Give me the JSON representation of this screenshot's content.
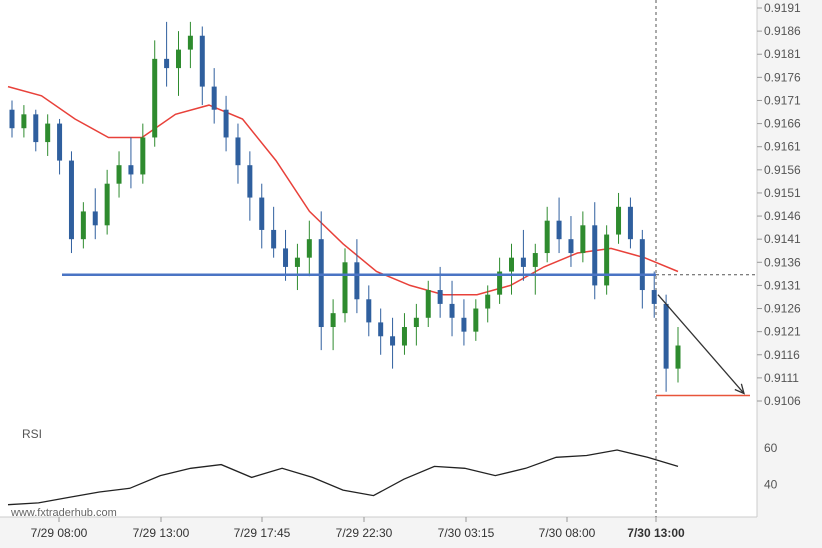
{
  "watermark": "www.fxtraderhub.com",
  "rsi_label": "RSI",
  "colors": {
    "bull": "#2e8b2e",
    "bear": "#2f5f9e",
    "ma": "#e8413a",
    "level": "#4a74c4",
    "target": "#e8553a",
    "arrow": "#333333",
    "rsi": "#222222"
  },
  "chart_data": {
    "type": "candlestick",
    "y_ticks": [
      "0.9191",
      "0.9186",
      "0.9181",
      "0.9176",
      "0.9171",
      "0.9166",
      "0.9161",
      "0.9156",
      "0.9151",
      "0.9146",
      "0.9141",
      "0.9136",
      "0.9131",
      "0.9126",
      "0.9121",
      "0.9116",
      "0.9111",
      "0.9106"
    ],
    "ylim": [
      0.9106,
      0.9191
    ],
    "x_ticks": [
      "7/29 08:00",
      "7/29 13:00",
      "7/29 17:45",
      "7/29 22:30",
      "7/30 03:15",
      "7/30 08:00",
      "7/30 13:00"
    ],
    "highlighted_x_tick": "7/30 13:00",
    "support_level": 0.91333,
    "target_level": 0.91072,
    "rsi_ticks": [
      60,
      40
    ],
    "rsi_ylim": [
      25,
      70
    ],
    "candles": [
      [
        0.9169,
        0.9171,
        0.9163,
        0.9165
      ],
      [
        0.9165,
        0.917,
        0.9163,
        0.9168
      ],
      [
        0.9168,
        0.9169,
        0.916,
        0.9162
      ],
      [
        0.9162,
        0.9168,
        0.9159,
        0.9166
      ],
      [
        0.9166,
        0.9167,
        0.9155,
        0.9158
      ],
      [
        0.9158,
        0.916,
        0.9138,
        0.9141
      ],
      [
        0.9141,
        0.9149,
        0.9139,
        0.9147
      ],
      [
        0.9147,
        0.9152,
        0.9141,
        0.9144
      ],
      [
        0.9144,
        0.9156,
        0.9142,
        0.9153
      ],
      [
        0.9153,
        0.916,
        0.915,
        0.9157
      ],
      [
        0.9157,
        0.9163,
        0.9152,
        0.9155
      ],
      [
        0.9155,
        0.9166,
        0.9153,
        0.9163
      ],
      [
        0.9163,
        0.9184,
        0.9161,
        0.918
      ],
      [
        0.918,
        0.9188,
        0.9174,
        0.9178
      ],
      [
        0.9178,
        0.9186,
        0.9172,
        0.9182
      ],
      [
        0.9182,
        0.9188,
        0.9178,
        0.9185
      ],
      [
        0.9185,
        0.9187,
        0.917,
        0.9174
      ],
      [
        0.9174,
        0.9178,
        0.9166,
        0.9169
      ],
      [
        0.9169,
        0.9172,
        0.916,
        0.9163
      ],
      [
        0.9163,
        0.9166,
        0.9153,
        0.9157
      ],
      [
        0.9157,
        0.916,
        0.9145,
        0.915
      ],
      [
        0.915,
        0.9153,
        0.9139,
        0.9143
      ],
      [
        0.9143,
        0.9148,
        0.9137,
        0.9139
      ],
      [
        0.9139,
        0.9143,
        0.9132,
        0.9135
      ],
      [
        0.9135,
        0.914,
        0.913,
        0.9137
      ],
      [
        0.9137,
        0.9145,
        0.9133,
        0.9141
      ],
      [
        0.9141,
        0.9147,
        0.9117,
        0.9122
      ],
      [
        0.9122,
        0.9128,
        0.9117,
        0.9125
      ],
      [
        0.9125,
        0.9139,
        0.9123,
        0.9136
      ],
      [
        0.9136,
        0.9141,
        0.9125,
        0.9128
      ],
      [
        0.9128,
        0.9131,
        0.912,
        0.9123
      ],
      [
        0.9123,
        0.9126,
        0.9116,
        0.912
      ],
      [
        0.912,
        0.9124,
        0.9113,
        0.9118
      ],
      [
        0.9118,
        0.9125,
        0.9116,
        0.9122
      ],
      [
        0.9122,
        0.9127,
        0.9118,
        0.9124
      ],
      [
        0.9124,
        0.9132,
        0.9122,
        0.913
      ],
      [
        0.913,
        0.9135,
        0.9124,
        0.9127
      ],
      [
        0.9127,
        0.9132,
        0.912,
        0.9124
      ],
      [
        0.9124,
        0.9128,
        0.9118,
        0.9121
      ],
      [
        0.9121,
        0.9128,
        0.9119,
        0.9126
      ],
      [
        0.9126,
        0.9131,
        0.9123,
        0.9129
      ],
      [
        0.9129,
        0.9137,
        0.9127,
        0.9134
      ],
      [
        0.9134,
        0.914,
        0.9129,
        0.9137
      ],
      [
        0.9137,
        0.9143,
        0.9132,
        0.9135
      ],
      [
        0.9135,
        0.914,
        0.9129,
        0.9138
      ],
      [
        0.9138,
        0.9148,
        0.9136,
        0.9145
      ],
      [
        0.9145,
        0.915,
        0.9138,
        0.9141
      ],
      [
        0.9141,
        0.9146,
        0.9135,
        0.9138
      ],
      [
        0.9138,
        0.9147,
        0.9136,
        0.9144
      ],
      [
        0.9144,
        0.9149,
        0.9128,
        0.9131
      ],
      [
        0.9131,
        0.9144,
        0.9129,
        0.9142
      ],
      [
        0.9142,
        0.9151,
        0.914,
        0.9148
      ],
      [
        0.9148,
        0.915,
        0.9139,
        0.9141
      ],
      [
        0.9141,
        0.9143,
        0.9126,
        0.913
      ],
      [
        0.913,
        0.9134,
        0.9124,
        0.9127
      ],
      [
        0.9127,
        0.9129,
        0.9108,
        0.9113
      ],
      [
        0.9113,
        0.9122,
        0.911,
        0.9118
      ]
    ],
    "ma": [
      0.9174,
      0.9172,
      0.9167,
      0.9163,
      0.9163,
      0.9168,
      0.917,
      0.9167,
      0.9158,
      0.9147,
      0.914,
      0.9134,
      0.9131,
      0.9129,
      0.9129,
      0.9131,
      0.9135,
      0.9138,
      0.9139,
      0.9137,
      0.9134
    ],
    "rsi": [
      29,
      30,
      33,
      36,
      38,
      45,
      49,
      51,
      44,
      49,
      44,
      37,
      34,
      43,
      50,
      49,
      45,
      49,
      55,
      56,
      59,
      55,
      50
    ]
  }
}
